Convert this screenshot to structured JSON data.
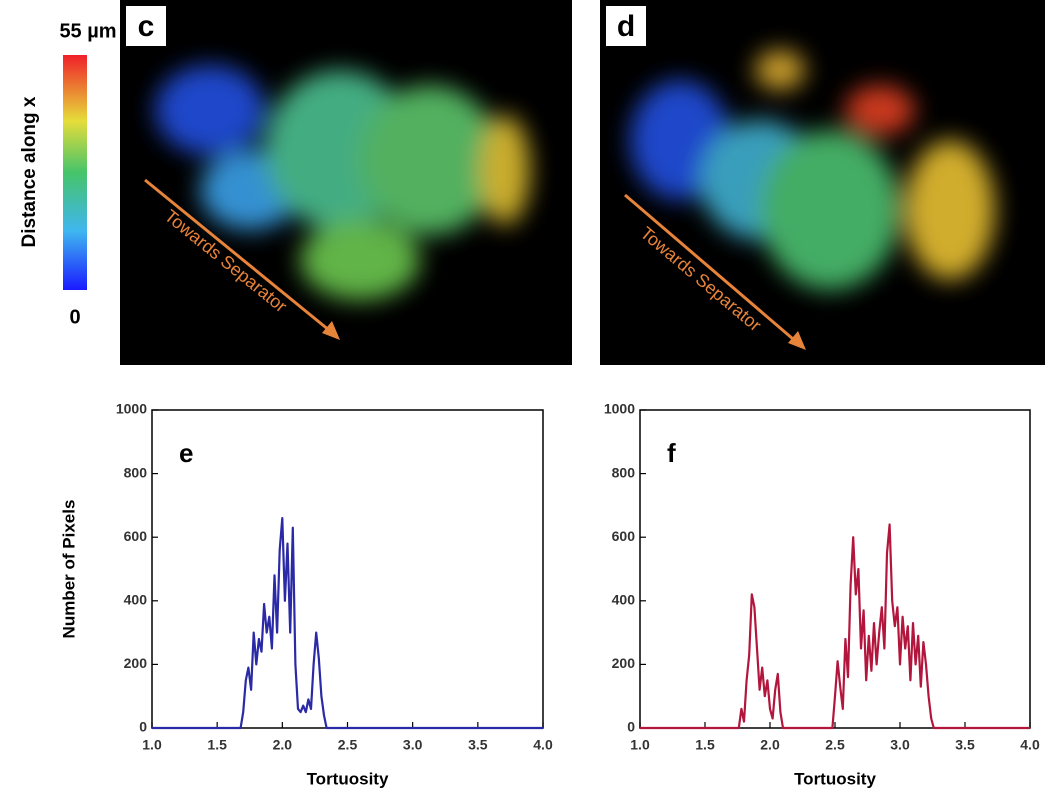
{
  "colorbar": {
    "title": "Distance along x",
    "max_label": "55 µm",
    "min_label": "0"
  },
  "panels": [
    {
      "label": "c",
      "annotation": "Towards Separator"
    },
    {
      "label": "d",
      "annotation": "Towards Separator"
    }
  ],
  "chart_data": [
    {
      "type": "line",
      "panel_label": "e",
      "x_label": "Tortuosity",
      "y_label": "Number of Pixels",
      "xlim": [
        1,
        4
      ],
      "xticks": [
        {
          "value": 1,
          "label": "1.0"
        },
        {
          "value": 1.5,
          "label": "1.5"
        },
        {
          "value": 2,
          "label": "2.0"
        },
        {
          "value": 2.5,
          "label": "2.5"
        },
        {
          "value": 3,
          "label": "3.0"
        },
        {
          "value": 3.5,
          "label": "3.5"
        },
        {
          "value": 4,
          "label": "4.0"
        }
      ],
      "ylim": [
        0,
        1000
      ],
      "yticks": [
        0,
        200,
        400,
        600,
        800,
        1000
      ],
      "series": [
        {
          "color": "#2a2aa6",
          "x": [
            1.0,
            1.68,
            1.7,
            1.72,
            1.74,
            1.76,
            1.78,
            1.8,
            1.82,
            1.84,
            1.86,
            1.88,
            1.9,
            1.92,
            1.94,
            1.96,
            1.98,
            2.0,
            2.02,
            2.04,
            2.06,
            2.08,
            2.1,
            2.12,
            2.14,
            2.16,
            2.18,
            2.2,
            2.22,
            2.24,
            2.26,
            2.28,
            2.3,
            2.32,
            2.34,
            4.0
          ],
          "values": [
            0,
            0,
            50,
            150,
            190,
            120,
            300,
            200,
            280,
            240,
            390,
            300,
            350,
            250,
            480,
            300,
            560,
            660,
            400,
            580,
            300,
            630,
            200,
            60,
            50,
            70,
            50,
            90,
            60,
            200,
            300,
            220,
            100,
            40,
            0,
            0
          ]
        }
      ]
    },
    {
      "type": "line",
      "panel_label": "f",
      "x_label": "Tortuosity",
      "xlim": [
        1,
        4
      ],
      "xticks": [
        {
          "value": 1,
          "label": "1.0"
        },
        {
          "value": 1.5,
          "label": "1.5"
        },
        {
          "value": 2,
          "label": "2.0"
        },
        {
          "value": 2.5,
          "label": "2.5"
        },
        {
          "value": 3,
          "label": "3.0"
        },
        {
          "value": 3.5,
          "label": "3.5"
        },
        {
          "value": 4,
          "label": "4.0"
        }
      ],
      "ylim": [
        0,
        1000
      ],
      "yticks": [
        0,
        200,
        400,
        600,
        800,
        1000
      ],
      "series": [
        {
          "color": "#b3163c",
          "x": [
            1.0,
            1.76,
            1.78,
            1.8,
            1.82,
            1.84,
            1.86,
            1.88,
            1.9,
            1.92,
            1.94,
            1.96,
            1.98,
            2.0,
            2.02,
            2.04,
            2.06,
            2.08,
            2.1,
            2.48,
            2.5,
            2.52,
            2.54,
            2.56,
            2.58,
            2.6,
            2.62,
            2.64,
            2.66,
            2.68,
            2.7,
            2.72,
            2.74,
            2.76,
            2.78,
            2.8,
            2.82,
            2.84,
            2.86,
            2.88,
            2.9,
            2.92,
            2.94,
            2.96,
            2.98,
            3.0,
            3.02,
            3.04,
            3.06,
            3.08,
            3.1,
            3.12,
            3.14,
            3.16,
            3.18,
            3.2,
            3.22,
            3.24,
            3.26,
            4.0
          ],
          "values": [
            0,
            0,
            60,
            20,
            150,
            230,
            420,
            380,
            250,
            120,
            190,
            100,
            150,
            60,
            30,
            120,
            170,
            50,
            0,
            0,
            100,
            210,
            130,
            60,
            280,
            160,
            450,
            600,
            420,
            500,
            250,
            370,
            150,
            290,
            180,
            330,
            200,
            300,
            380,
            250,
            550,
            640,
            400,
            320,
            380,
            200,
            350,
            250,
            320,
            150,
            330,
            200,
            290,
            130,
            270,
            200,
            100,
            30,
            0,
            0
          ]
        }
      ]
    }
  ]
}
